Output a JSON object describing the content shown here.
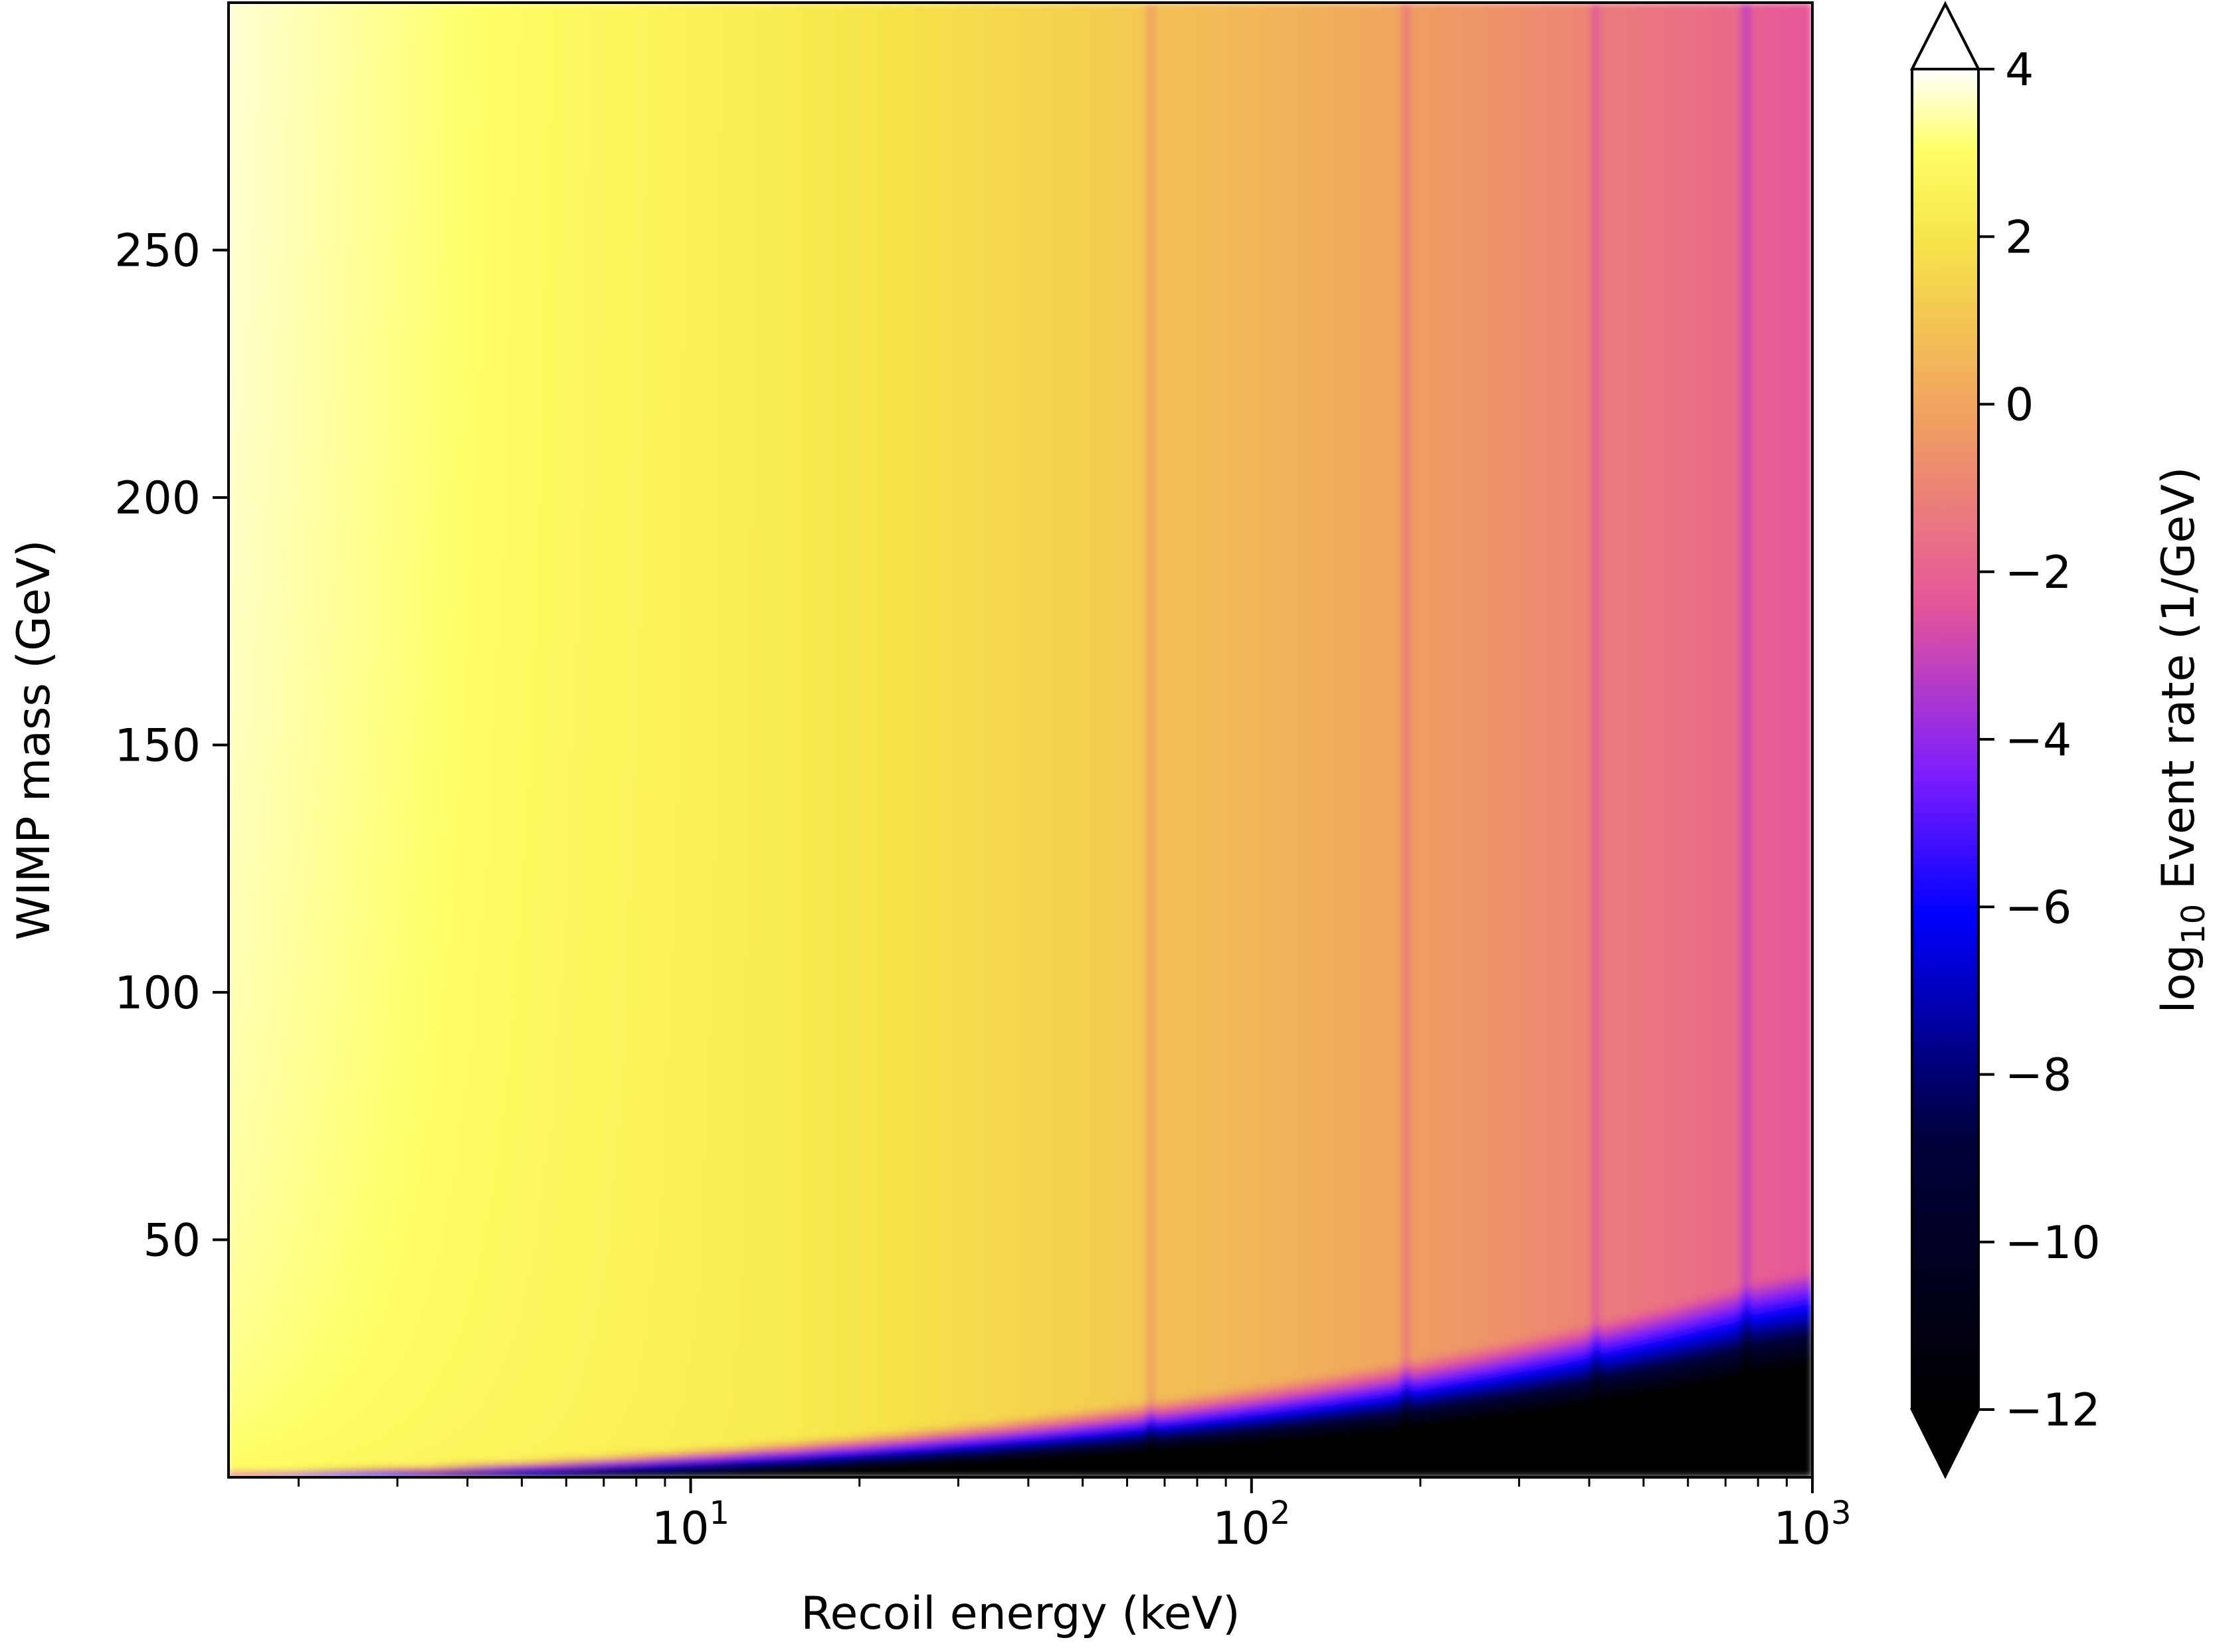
{
  "chart_data": {
    "type": "heatmap",
    "title": "",
    "xlabel": "Recoil energy (keV)",
    "ylabel": "WIMP mass (GeV)",
    "x_scale": "log",
    "xlim": [
      1.5,
      1000
    ],
    "ylim": [
      2,
      300
    ],
    "x_ticks": [
      {
        "value": 10,
        "base": "10",
        "exp": "1"
      },
      {
        "value": 100,
        "base": "10",
        "exp": "2"
      },
      {
        "value": 1000,
        "base": "10",
        "exp": "3"
      }
    ],
    "y_ticks": [
      {
        "value": 50,
        "label": "50"
      },
      {
        "value": 100,
        "label": "100"
      },
      {
        "value": 150,
        "label": "150"
      },
      {
        "value": 200,
        "label": "200"
      },
      {
        "value": 250,
        "label": "250"
      }
    ],
    "colorbar": {
      "label_prefix": "log",
      "label_sub": "10",
      "label_suffix": " Event rate (1/GeV)",
      "colormap": "gnuplot2",
      "vmin": -12,
      "vmax": 4,
      "extend": "both",
      "ticks": [
        {
          "value": 4,
          "label": "4"
        },
        {
          "value": 2,
          "label": "2"
        },
        {
          "value": 0,
          "label": "0"
        },
        {
          "value": -2,
          "label": "−2"
        },
        {
          "value": -4,
          "label": "−4"
        },
        {
          "value": -6,
          "label": "−6"
        },
        {
          "value": -8,
          "label": "−8"
        },
        {
          "value": -10,
          "label": "−10"
        },
        {
          "value": -12,
          "label": "−12"
        }
      ]
    },
    "vertical_features_keV": [
      66,
      188,
      410,
      760
    ],
    "grid": false
  }
}
